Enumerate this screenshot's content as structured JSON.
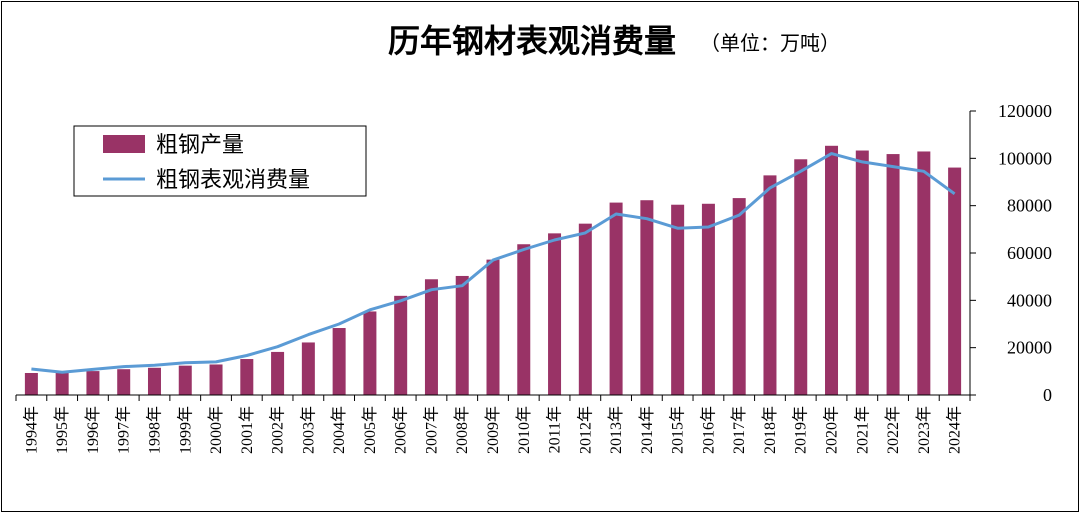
{
  "chart_data": {
    "type": "bar",
    "title": "历年钢材表观消费量",
    "subtitle": "（单位：万吨）",
    "categories": [
      "1994年",
      "1995年",
      "1996年",
      "1997年",
      "1998年",
      "1999年",
      "2000年",
      "2001年",
      "2002年",
      "2003年",
      "2004年",
      "2005年",
      "2006年",
      "2007年",
      "2008年",
      "2009年",
      "2010年",
      "2011年",
      "2012年",
      "2013年",
      "2014年",
      "2015年",
      "2016年",
      "2017年",
      "2018年",
      "2019年",
      "2020年",
      "2021年",
      "2022年",
      "2023年",
      "2024年"
    ],
    "series": [
      {
        "name": "粗钢产量",
        "type": "bar",
        "color": "#993366",
        "values": [
          9300,
          9500,
          10100,
          10900,
          11500,
          12400,
          12900,
          15200,
          18200,
          22200,
          28300,
          35300,
          41900,
          48900,
          50300,
          57200,
          63700,
          68300,
          72400,
          81300,
          82300,
          80400,
          80800,
          83200,
          92800,
          99600,
          105300,
          103300,
          101800,
          102900,
          96100
        ]
      },
      {
        "name": "粗钢表观消费量",
        "type": "line",
        "color": "#5b9bd5",
        "values": [
          11000,
          9600,
          10800,
          12000,
          12600,
          13600,
          14000,
          16700,
          20400,
          25500,
          30000,
          36000,
          39800,
          44500,
          46200,
          57000,
          61500,
          65500,
          68500,
          76500,
          74500,
          70500,
          71000,
          76000,
          87500,
          94500,
          102000,
          98500,
          96500,
          94500,
          85000
        ]
      }
    ],
    "yticks": [
      "0",
      "20000",
      "40000",
      "60000",
      "80000",
      "100000",
      "120000"
    ],
    "ylim": [
      0,
      120000
    ],
    "y_axis_side": "right",
    "legend_position": "top-left",
    "grid": false
  }
}
